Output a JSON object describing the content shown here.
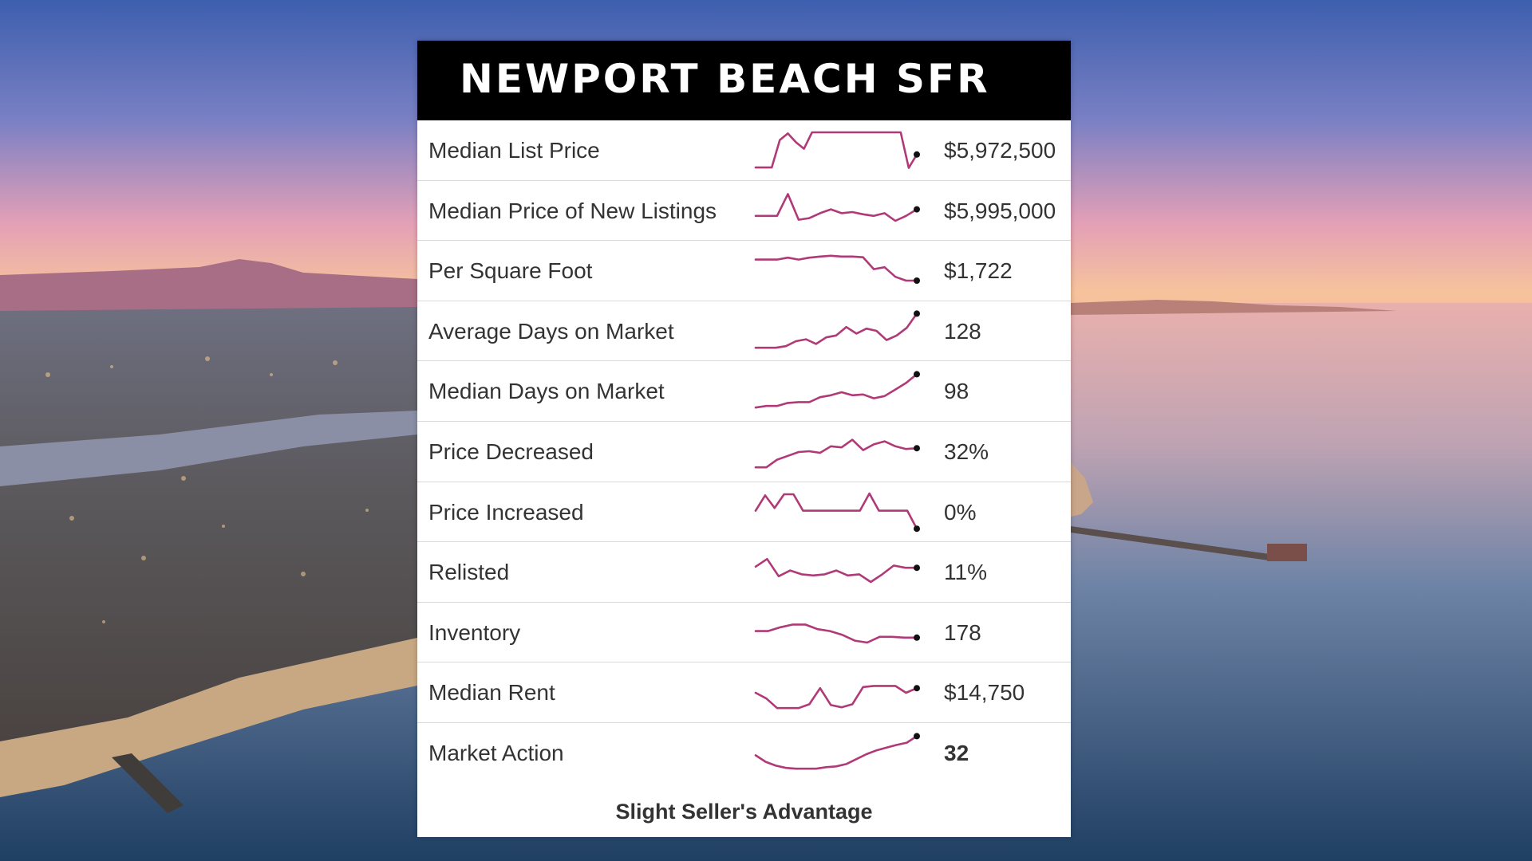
{
  "title": "NEWPORT BEACH SFR",
  "colors": {
    "header_bg": "#000000",
    "sparkline": "#b03a78",
    "endpoint": "#111111"
  },
  "rows": [
    {
      "label": "Median List Price",
      "value": "$5,972,500",
      "bold": false,
      "trend": [
        0.06,
        0.06,
        0.06,
        0.78,
        0.95,
        0.72,
        0.55,
        0.98,
        0.98,
        0.98,
        0.98,
        0.98,
        0.98,
        0.98,
        0.98,
        0.98,
        0.98,
        0.98,
        0.98,
        0.05,
        0.4
      ]
    },
    {
      "label": "Median Price of New Listings",
      "value": "$5,995,000",
      "bold": false,
      "trend": [
        0.38,
        0.38,
        0.38,
        0.95,
        0.28,
        0.32,
        0.45,
        0.55,
        0.45,
        0.48,
        0.42,
        0.38,
        0.45,
        0.25,
        0.38,
        0.55
      ]
    },
    {
      "label": "Per Square Foot",
      "value": "$1,722",
      "bold": false,
      "trend": [
        0.8,
        0.8,
        0.8,
        0.85,
        0.8,
        0.85,
        0.88,
        0.9,
        0.88,
        0.88,
        0.86,
        0.55,
        0.6,
        0.35,
        0.25,
        0.25
      ]
    },
    {
      "label": "Average Days on Market",
      "value": "128",
      "bold": false,
      "trend": [
        0.08,
        0.08,
        0.08,
        0.12,
        0.25,
        0.3,
        0.18,
        0.35,
        0.4,
        0.62,
        0.45,
        0.58,
        0.52,
        0.28,
        0.4,
        0.6,
        0.97
      ]
    },
    {
      "label": "Median Days on Market",
      "value": "98",
      "bold": false,
      "trend": [
        0.08,
        0.12,
        0.12,
        0.2,
        0.22,
        0.22,
        0.35,
        0.4,
        0.48,
        0.4,
        0.42,
        0.32,
        0.38,
        0.55,
        0.72,
        0.95
      ]
    },
    {
      "label": "Price Decreased",
      "value": "32%",
      "bold": false,
      "trend": [
        0.1,
        0.1,
        0.3,
        0.4,
        0.5,
        0.52,
        0.48,
        0.65,
        0.62,
        0.82,
        0.55,
        0.7,
        0.78,
        0.65,
        0.58,
        0.6
      ]
    },
    {
      "label": "Price Increased",
      "value": "0%",
      "bold": false,
      "trend": [
        0.55,
        0.95,
        0.62,
        0.98,
        0.98,
        0.55,
        0.55,
        0.55,
        0.55,
        0.55,
        0.55,
        0.55,
        1.0,
        0.55,
        0.55,
        0.55,
        0.55,
        0.08
      ]
    },
    {
      "label": "Relisted",
      "value": "11%",
      "bold": false,
      "trend": [
        0.65,
        0.85,
        0.4,
        0.55,
        0.45,
        0.42,
        0.45,
        0.55,
        0.42,
        0.45,
        0.25,
        0.45,
        0.68,
        0.62,
        0.62
      ]
    },
    {
      "label": "Inventory",
      "value": "178",
      "bold": false,
      "trend": [
        0.55,
        0.55,
        0.65,
        0.72,
        0.72,
        0.6,
        0.55,
        0.45,
        0.3,
        0.25,
        0.4,
        0.4,
        0.38,
        0.38
      ]
    },
    {
      "label": "Median Rent",
      "value": "$14,750",
      "bold": false,
      "trend": [
        0.5,
        0.35,
        0.1,
        0.1,
        0.1,
        0.2,
        0.62,
        0.18,
        0.12,
        0.2,
        0.65,
        0.68,
        0.68,
        0.68,
        0.5,
        0.62
      ]
    },
    {
      "label": "Market Action",
      "value": "32",
      "bold": true,
      "trend": [
        0.45,
        0.28,
        0.18,
        0.12,
        0.1,
        0.1,
        0.1,
        0.14,
        0.16,
        0.22,
        0.35,
        0.48,
        0.58,
        0.65,
        0.72,
        0.78,
        0.95
      ]
    }
  ],
  "footer": "Slight Seller's Advantage"
}
